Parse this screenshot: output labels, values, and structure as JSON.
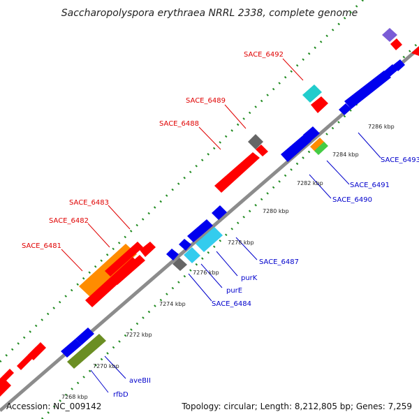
{
  "title": "Saccharopolyspora erythraea NRRL 2338, complete genome",
  "accession": "Accession: NC_009142",
  "summary": "Topology: circular; Length: 8,212,805 bp; Genes: 7,259",
  "colors": {
    "backbone": "#8c8c8c",
    "dots": "#1f8a1f",
    "label_top": "#e00000",
    "label_bottom": "#0000cc",
    "red": "#ff0000",
    "blue": "#0000ee",
    "orange": "#ff8c00",
    "cyan": "#33ccee",
    "teal": "#22cccc",
    "gray": "#666666",
    "olive": "#6b8e23",
    "green": "#44cc44",
    "purple": "#7a5cd6"
  },
  "ticks": [
    "7268 kbp",
    "7270 kbp",
    "7272 kbp",
    "7274 kbp",
    "7276 kbp",
    "7278 kbp",
    "7280 kbp",
    "7282 kbp",
    "7284 kbp",
    "7286 kbp"
  ],
  "labels_top": [
    "SACE_6481",
    "SACE_6482",
    "SACE_6483",
    "SACE_6488",
    "SACE_6489",
    "SACE_6492"
  ],
  "labels_bottom": [
    "rfbD",
    "aveBII",
    "SACE_6484",
    "purE",
    "purK",
    "SACE_6487",
    "SACE_6490",
    "SACE_6491",
    "SACE_6493"
  ]
}
